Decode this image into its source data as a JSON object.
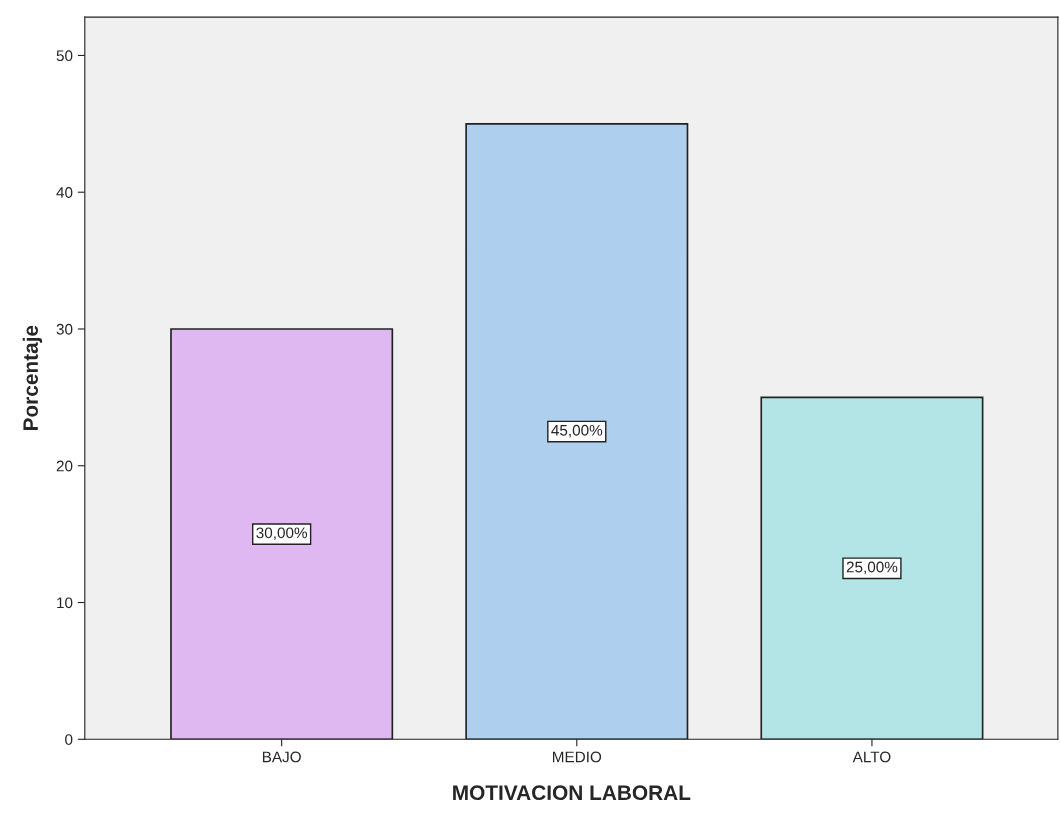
{
  "chart_data": {
    "type": "bar",
    "xlabel": "MOTIVACION LABORAL",
    "ylabel": "Porcentaje",
    "categories": [
      "BAJO",
      "MEDIO",
      "ALTO"
    ],
    "values": [
      30,
      45,
      25
    ],
    "colors": [
      "#dfb8f2",
      "#aecfee",
      "#b4e5e6"
    ],
    "value_labels": [
      "30,00%",
      "45,00%",
      "25,00%"
    ],
    "ylim": [
      0,
      52.8
    ],
    "yticks": [
      0,
      10,
      20,
      30,
      40,
      50
    ],
    "grid": false
  }
}
